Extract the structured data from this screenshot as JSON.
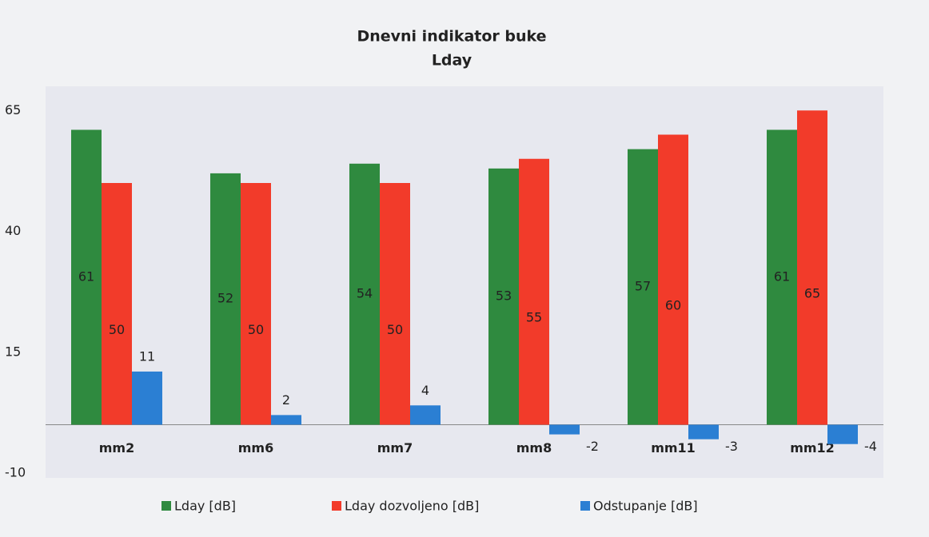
{
  "chart_data": {
    "type": "bar",
    "title": "Dnevni indikator buke",
    "subtitle": "Lday",
    "categories": [
      "mm2",
      "mm6",
      "mm7",
      "mm8",
      "mm11",
      "mm12"
    ],
    "series": [
      {
        "name": "Lday [dB]",
        "color": "#2f8a3f",
        "values": [
          61,
          52,
          54,
          53,
          57,
          61
        ]
      },
      {
        "name": "Lday dozvoljeno [dB]",
        "color": "#f23b2a",
        "values": [
          50,
          50,
          50,
          55,
          60,
          65
        ]
      },
      {
        "name": "Odstupanje [dB]",
        "color": "#2b7fd3",
        "values": [
          11,
          2,
          4,
          -2,
          -3,
          -4
        ]
      }
    ],
    "ylim": [
      -10,
      70
    ],
    "yticks": [
      -10,
      15,
      40,
      65
    ],
    "grid": false,
    "legend": "bottom"
  }
}
